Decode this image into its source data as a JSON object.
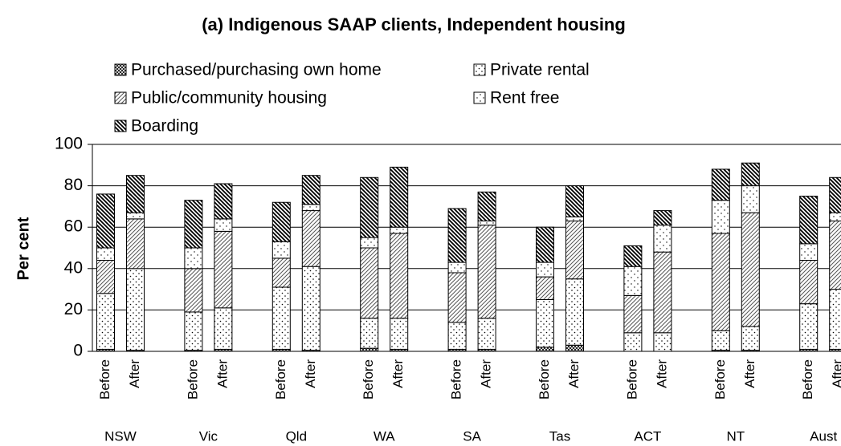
{
  "chart_data": {
    "type": "stacked-bar",
    "title": "(a) Indigenous SAAP clients, Independent housing",
    "y_label": "Per cent",
    "groups": [
      "NSW",
      "Vic",
      "Qld",
      "WA",
      "SA",
      "Tas",
      "ACT",
      "NT",
      "Aust"
    ],
    "categories": [
      "Before",
      "After",
      "Before",
      "After",
      "Before",
      "After",
      "Before",
      "After",
      "Before",
      "After",
      "Before",
      "After",
      "Before",
      "After",
      "Before",
      "After",
      "Before",
      "After"
    ],
    "series": [
      {
        "name": "Purchased/purchasing own home",
        "pattern": "crosshatch",
        "values": [
          1,
          0.5,
          0.5,
          1,
          1,
          0.5,
          1.5,
          1,
          1,
          1,
          2,
          3,
          0,
          0,
          0.5,
          0.5,
          1,
          1
        ]
      },
      {
        "name": "Private rental",
        "pattern": "dots",
        "values": [
          27,
          39.5,
          18.5,
          20,
          30,
          40.5,
          14.5,
          15,
          13,
          15,
          23,
          32,
          9,
          9,
          9.5,
          11.5,
          22,
          29
        ]
      },
      {
        "name": "Public/community housing",
        "pattern": "diagonal",
        "values": [
          16,
          24,
          21,
          37,
          14,
          27,
          34,
          41,
          24,
          45,
          11,
          28,
          18,
          39,
          47,
          55,
          21,
          33
        ]
      },
      {
        "name": "Rent free",
        "pattern": "sparse-dots",
        "values": [
          6,
          3,
          10,
          6,
          8,
          3,
          5,
          3,
          5,
          2,
          7,
          2,
          14,
          13,
          16,
          13,
          8,
          4
        ]
      },
      {
        "name": "Boarding",
        "pattern": "dense-diagonal",
        "values": [
          26,
          18,
          23,
          17,
          19,
          14,
          29,
          29,
          26,
          14,
          17,
          15,
          10,
          7,
          15,
          11,
          23,
          17
        ]
      }
    ],
    "ylim": [
      0,
      100
    ],
    "yticks": [
      0,
      20,
      40,
      60,
      80,
      100
    ],
    "grid": true
  }
}
